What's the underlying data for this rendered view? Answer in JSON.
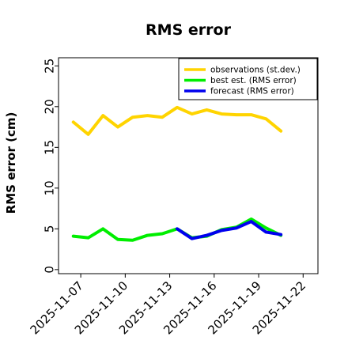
{
  "chart_data": {
    "type": "line",
    "title": "RMS error",
    "ylabel": "RMS error (cm)",
    "xlabel": "",
    "ylim": [
      -0.5,
      26
    ],
    "y_ticks": [
      0,
      5,
      10,
      15,
      20,
      25
    ],
    "x_range": [
      "2025-11-05T12:00",
      "2025-11-23T00:00"
    ],
    "x_ticks": [
      "2025-11-07",
      "2025-11-10",
      "2025-11-13",
      "2025-11-16",
      "2025-11-19",
      "2025-11-22"
    ],
    "x_tick_colors": [
      "#000000",
      "#000000",
      "#1a7a1a",
      "#000000",
      "#000000",
      "#000000"
    ],
    "grid": false,
    "legend_position": "top-right",
    "series": [
      {
        "name": "observations (st.dev.)",
        "color": "#FFD400",
        "points": [
          [
            "2025-11-06T12:00",
            18.1
          ],
          [
            "2025-11-07T12:00",
            16.6
          ],
          [
            "2025-11-08T12:00",
            18.9
          ],
          [
            "2025-11-09T12:00",
            17.5
          ],
          [
            "2025-11-10T12:00",
            18.7
          ],
          [
            "2025-11-11T12:00",
            18.9
          ],
          [
            "2025-11-12T12:00",
            18.7
          ],
          [
            "2025-11-13T12:00",
            19.9
          ],
          [
            "2025-11-14T12:00",
            19.1
          ],
          [
            "2025-11-15T12:00",
            19.6
          ],
          [
            "2025-11-16T12:00",
            19.1
          ],
          [
            "2025-11-17T12:00",
            19.0
          ],
          [
            "2025-11-18T12:00",
            19.0
          ],
          [
            "2025-11-19T12:00",
            18.5
          ],
          [
            "2025-11-20T12:00",
            17.0
          ]
        ]
      },
      {
        "name": "best est. (RMS error)",
        "color": "#00EE00",
        "points": [
          [
            "2025-11-06T12:00",
            4.1
          ],
          [
            "2025-11-07T12:00",
            3.9
          ],
          [
            "2025-11-08T12:00",
            5.0
          ],
          [
            "2025-11-09T12:00",
            3.7
          ],
          [
            "2025-11-10T12:00",
            3.6
          ],
          [
            "2025-11-11T12:00",
            4.2
          ],
          [
            "2025-11-12T12:00",
            4.4
          ],
          [
            "2025-11-13T12:00",
            5.0
          ],
          [
            "2025-11-14T12:00",
            3.9
          ],
          [
            "2025-11-15T12:00",
            4.1
          ],
          [
            "2025-11-16T12:00",
            4.9
          ],
          [
            "2025-11-17T12:00",
            5.2
          ],
          [
            "2025-11-18T12:00",
            6.2
          ],
          [
            "2025-11-19T12:00",
            5.1
          ],
          [
            "2025-11-20T12:00",
            4.2
          ]
        ]
      },
      {
        "name": "forecast (RMS error)",
        "color": "#0000EE",
        "points": [
          [
            "2025-11-13T12:00",
            5.0
          ],
          [
            "2025-11-14T12:00",
            3.8
          ],
          [
            "2025-11-15T12:00",
            4.2
          ],
          [
            "2025-11-16T12:00",
            4.8
          ],
          [
            "2025-11-17T12:00",
            5.1
          ],
          [
            "2025-11-18T12:00",
            5.9
          ],
          [
            "2025-11-19T12:00",
            4.6
          ],
          [
            "2025-11-20T12:00",
            4.3
          ]
        ]
      }
    ]
  }
}
